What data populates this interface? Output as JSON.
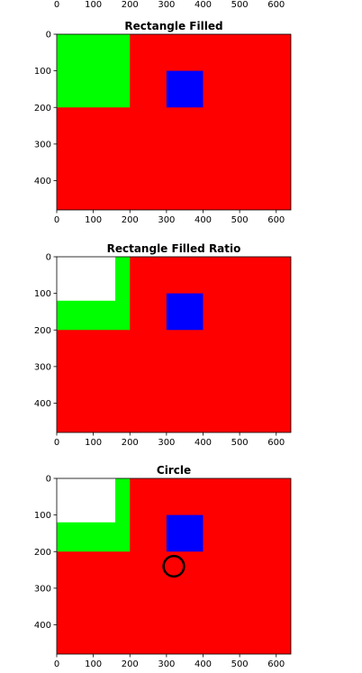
{
  "colors": {
    "background": "#ffffff",
    "red": "#ff0000",
    "green": "#00ff00",
    "blue": "#0000ff",
    "white": "#ffffff",
    "black": "#000000"
  },
  "chart_data": [
    {
      "type": "heatmap",
      "title": "",
      "partial": "top-cropped",
      "xlim": [
        0,
        640
      ],
      "x_ticks": [
        0,
        100,
        200,
        300,
        400,
        500,
        600
      ],
      "x_tick_labels": [
        "0",
        "100",
        "200",
        "300",
        "400",
        "500",
        "600"
      ]
    },
    {
      "type": "heatmap",
      "title": "Rectangle Filled",
      "xlim": [
        0,
        640
      ],
      "ylim": [
        480,
        0
      ],
      "x_ticks": [
        0,
        100,
        200,
        300,
        400,
        500,
        600
      ],
      "x_tick_labels": [
        "0",
        "100",
        "200",
        "300",
        "400",
        "500",
        "600"
      ],
      "y_ticks": [
        0,
        100,
        200,
        300,
        400
      ],
      "y_tick_labels": [
        "0",
        "100",
        "200",
        "300",
        "400"
      ],
      "background": "#ff0000",
      "rects": [
        {
          "x0": 0,
          "y0": 0,
          "x1": 200,
          "y1": 200,
          "color": "#00ff00"
        },
        {
          "x0": 300,
          "y0": 100,
          "x1": 400,
          "y1": 200,
          "color": "#0000ff"
        }
      ],
      "circles": []
    },
    {
      "type": "heatmap",
      "title": "Rectangle Filled Ratio",
      "xlim": [
        0,
        640
      ],
      "ylim": [
        480,
        0
      ],
      "x_ticks": [
        0,
        100,
        200,
        300,
        400,
        500,
        600
      ],
      "x_tick_labels": [
        "0",
        "100",
        "200",
        "300",
        "400",
        "500",
        "600"
      ],
      "y_ticks": [
        0,
        100,
        200,
        300,
        400
      ],
      "y_tick_labels": [
        "0",
        "100",
        "200",
        "300",
        "400"
      ],
      "background": "#ff0000",
      "rects": [
        {
          "x0": 0,
          "y0": 0,
          "x1": 200,
          "y1": 200,
          "color": "#00ff00"
        },
        {
          "x0": 0,
          "y0": 0,
          "x1": 160,
          "y1": 120,
          "color": "#ffffff"
        },
        {
          "x0": 300,
          "y0": 100,
          "x1": 400,
          "y1": 200,
          "color": "#0000ff"
        }
      ],
      "circles": []
    },
    {
      "type": "heatmap",
      "title": "Circle",
      "xlim": [
        0,
        640
      ],
      "ylim": [
        480,
        0
      ],
      "x_ticks": [
        0,
        100,
        200,
        300,
        400,
        500,
        600
      ],
      "x_tick_labels": [
        "0",
        "100",
        "200",
        "300",
        "400",
        "500",
        "600"
      ],
      "y_ticks": [
        0,
        100,
        200,
        300,
        400
      ],
      "y_tick_labels": [
        "0",
        "100",
        "200",
        "300",
        "400"
      ],
      "background": "#ff0000",
      "rects": [
        {
          "x0": 0,
          "y0": 0,
          "x1": 200,
          "y1": 200,
          "color": "#00ff00"
        },
        {
          "x0": 0,
          "y0": 0,
          "x1": 160,
          "y1": 120,
          "color": "#ffffff"
        },
        {
          "x0": 300,
          "y0": 100,
          "x1": 400,
          "y1": 200,
          "color": "#0000ff"
        }
      ],
      "circles": [
        {
          "cx": 320,
          "cy": 240,
          "r": 28,
          "stroke": "#000000",
          "fill": "none"
        }
      ]
    }
  ]
}
